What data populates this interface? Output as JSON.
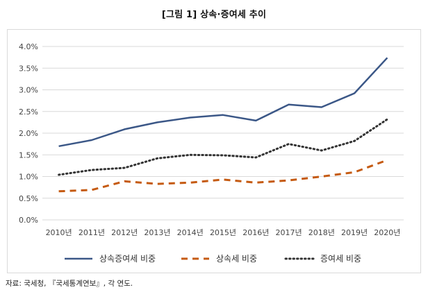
{
  "title": "[그림 1] 상속·증여세 추이",
  "source": "자료: 국세청, 『국세통계연보』, 각 연도.",
  "chart_data": {
    "type": "line",
    "categories": [
      "2010년",
      "2011년",
      "2012년",
      "2013년",
      "2014년",
      "2015년",
      "2016년",
      "2017년",
      "2018년",
      "2019년",
      "2020년"
    ],
    "y_ticks": [
      "0.0%",
      "0.5%",
      "1.0%",
      "1.5%",
      "2.0%",
      "2.5%",
      "3.0%",
      "3.5%",
      "4.0%"
    ],
    "ylim": [
      0,
      4.0
    ],
    "y_unit": "%",
    "grid": true,
    "legend_position": "bottom",
    "series": [
      {
        "name": "상속증여세 비중",
        "style": "solid",
        "color": "#3b5787",
        "values": [
          1.7,
          1.84,
          2.09,
          2.25,
          2.36,
          2.42,
          2.29,
          2.66,
          2.6,
          2.92,
          3.74
        ]
      },
      {
        "name": "상속세 비중",
        "style": "dashed",
        "color": "#c55a11",
        "values": [
          0.66,
          0.69,
          0.89,
          0.83,
          0.86,
          0.93,
          0.86,
          0.91,
          1.0,
          1.1,
          1.38
        ]
      },
      {
        "name": "증여세 비중",
        "style": "dotted",
        "color": "#333333",
        "values": [
          1.04,
          1.15,
          1.2,
          1.42,
          1.5,
          1.49,
          1.44,
          1.75,
          1.6,
          1.82,
          2.32
        ]
      }
    ]
  }
}
